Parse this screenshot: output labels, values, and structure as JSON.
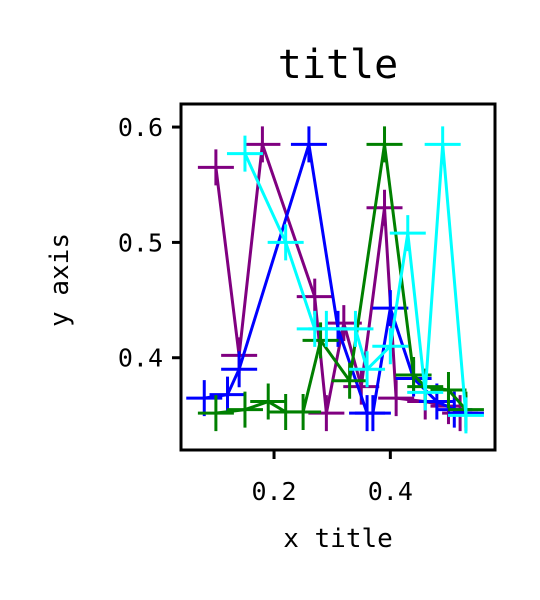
{
  "chart_data": {
    "type": "line",
    "title": "title",
    "xlabel": "x title",
    "ylabel": "y axis",
    "xlim": [
      0.04,
      0.58
    ],
    "ylim": [
      0.32,
      0.62
    ],
    "xticks": [
      0.2,
      0.4
    ],
    "yticks": [
      0.4,
      0.5,
      0.6
    ],
    "grid": false,
    "legend": "none",
    "marker": "plus",
    "series": [
      {
        "color": "#800080",
        "x": [
          0.1,
          0.14,
          0.18,
          0.27,
          0.29,
          0.32,
          0.35,
          0.39,
          0.41,
          0.46,
          0.5,
          0.52
        ],
        "y": [
          0.565,
          0.402,
          0.585,
          0.453,
          0.352,
          0.43,
          0.375,
          0.53,
          0.365,
          0.362,
          0.358,
          0.352
        ]
      },
      {
        "color": "#0000ff",
        "x": [
          0.08,
          0.12,
          0.14,
          0.26,
          0.31,
          0.36,
          0.37,
          0.4,
          0.44,
          0.48,
          0.51,
          0.53
        ],
        "y": [
          0.365,
          0.368,
          0.39,
          0.585,
          0.425,
          0.352,
          0.352,
          0.443,
          0.382,
          0.362,
          0.355,
          0.352
        ]
      },
      {
        "color": "#008000",
        "x": [
          0.1,
          0.15,
          0.19,
          0.22,
          0.25,
          0.28,
          0.33,
          0.39,
          0.44,
          0.46,
          0.5,
          0.53
        ],
        "y": [
          0.352,
          0.355,
          0.362,
          0.353,
          0.353,
          0.415,
          0.38,
          0.585,
          0.385,
          0.375,
          0.372,
          0.355
        ]
      },
      {
        "color": "#00ffff",
        "x": [
          0.15,
          0.22,
          0.27,
          0.29,
          0.34,
          0.36,
          0.4,
          0.43,
          0.46,
          0.49,
          0.53
        ],
        "y": [
          0.577,
          0.5,
          0.425,
          0.425,
          0.425,
          0.39,
          0.41,
          0.508,
          0.37,
          0.585,
          0.35
        ]
      }
    ]
  }
}
